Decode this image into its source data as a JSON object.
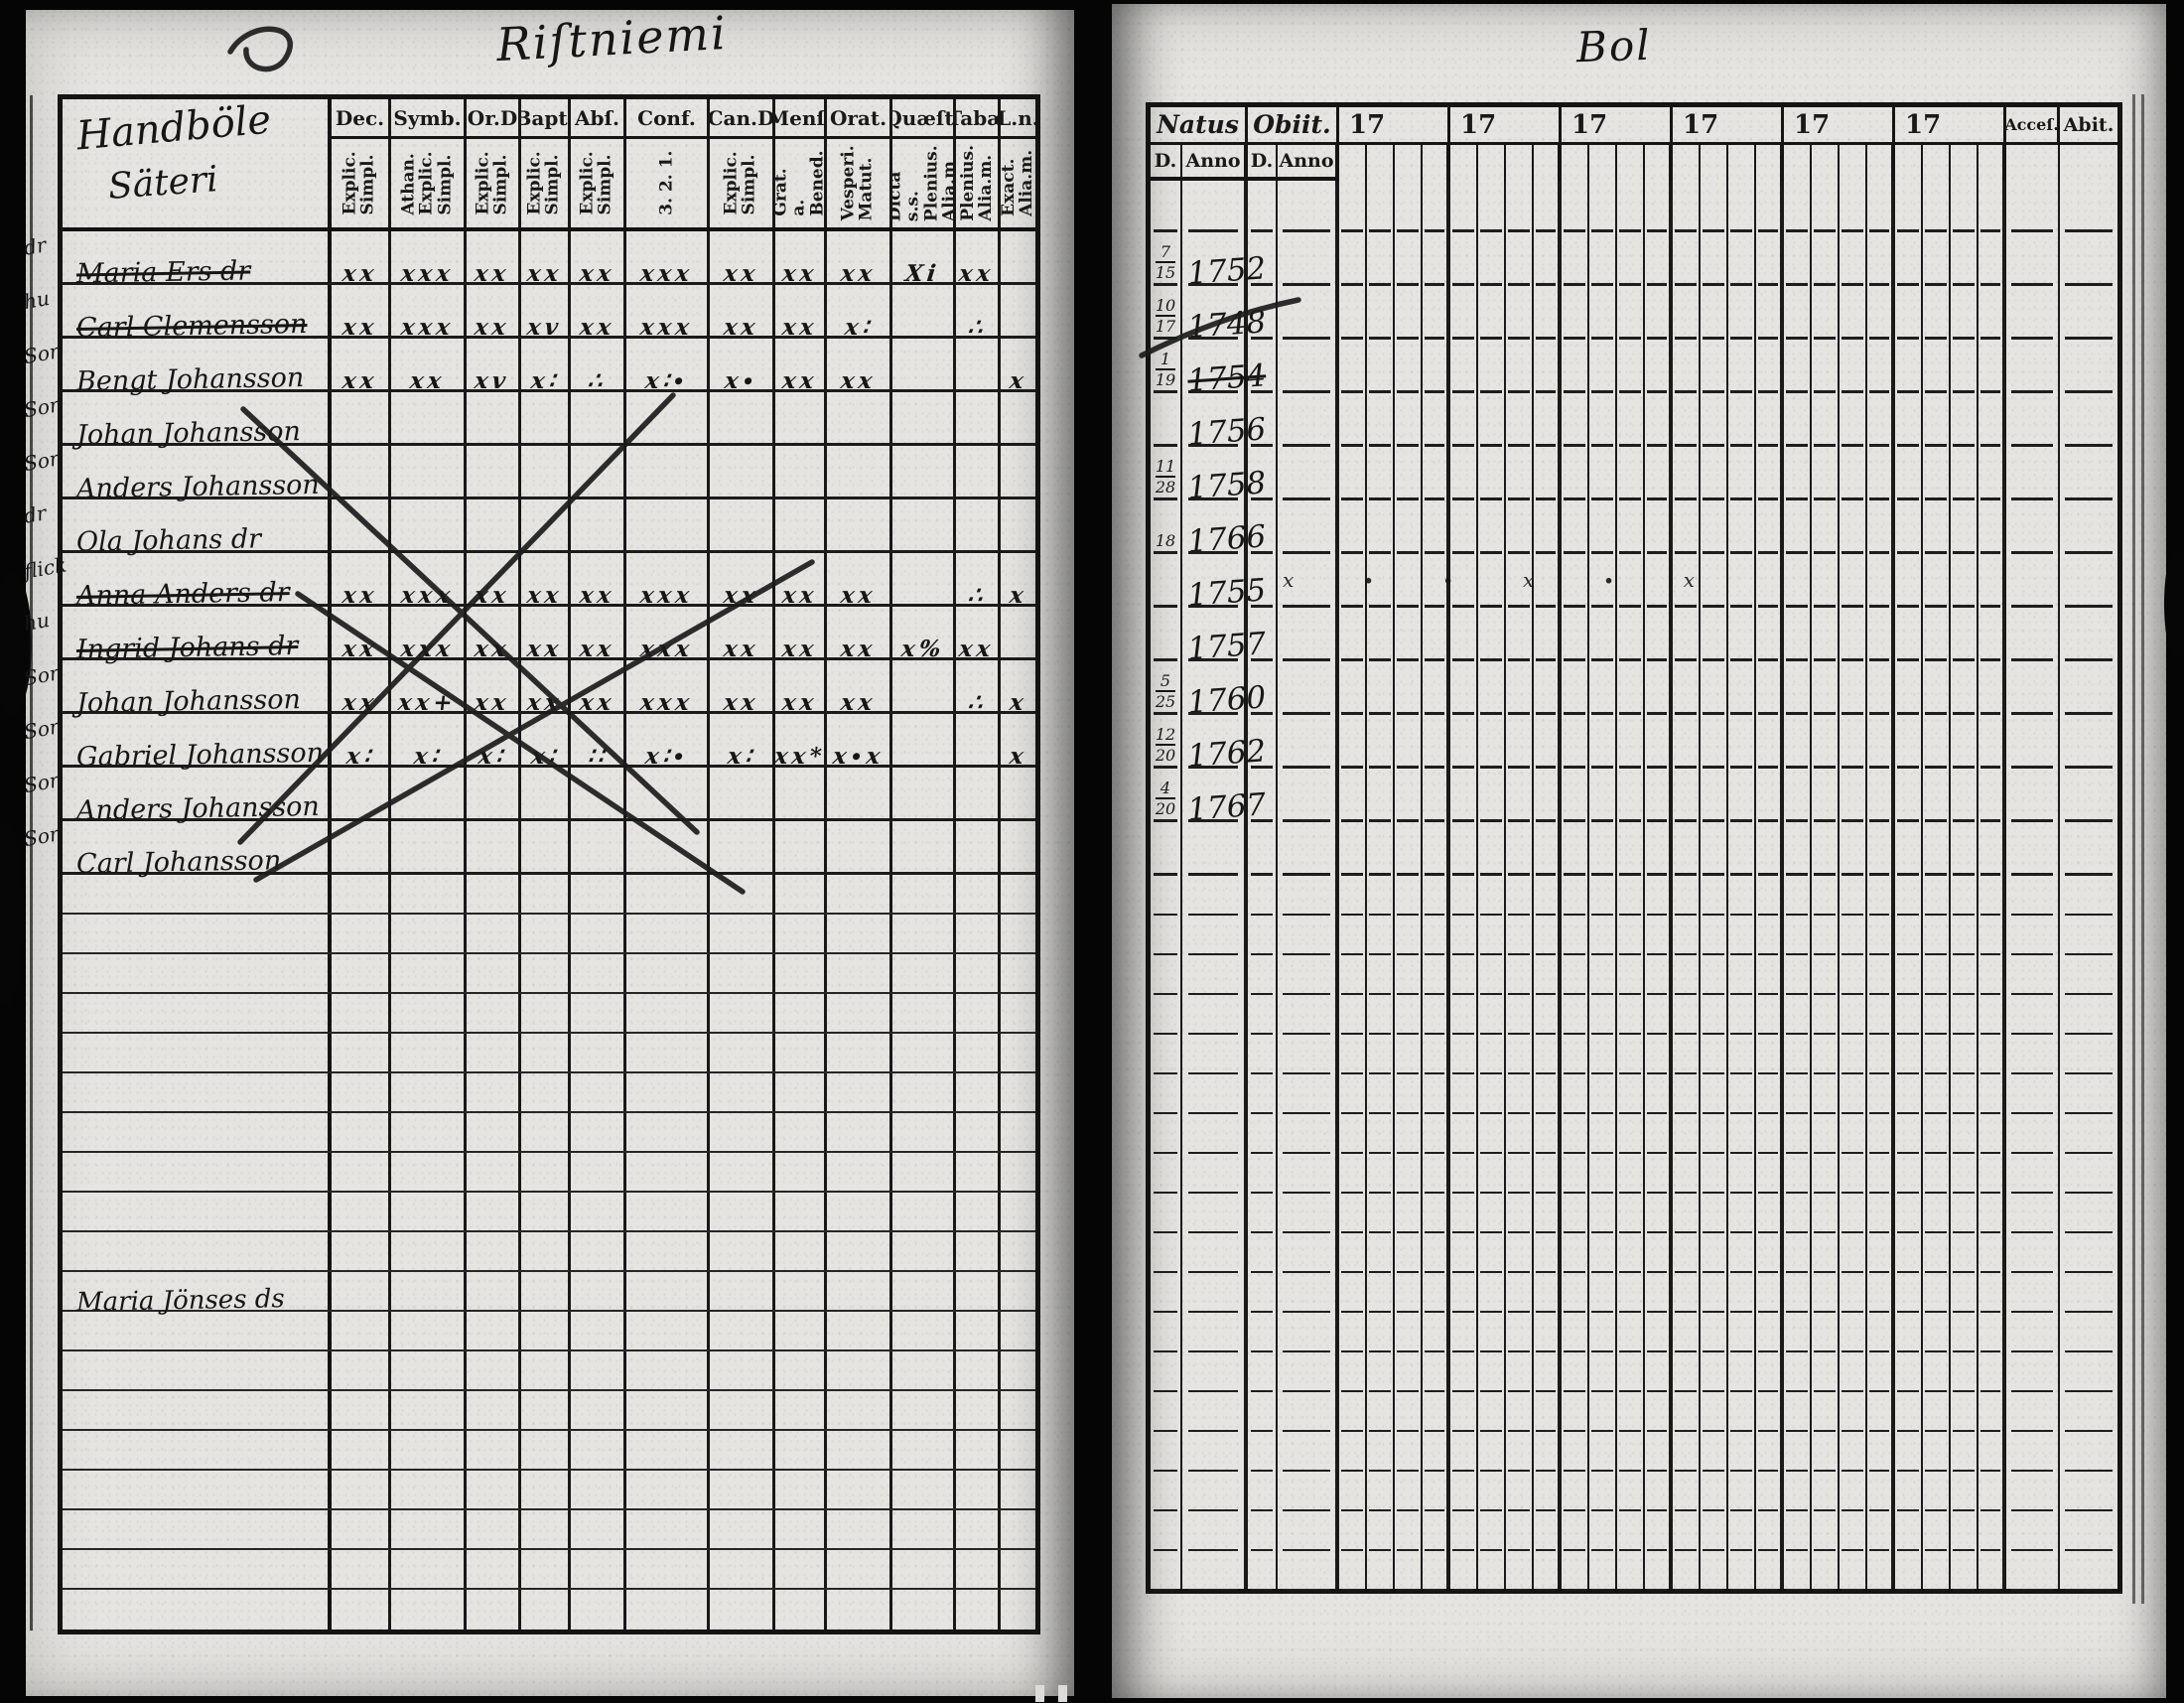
{
  "left_page": {
    "title_handwritten": "Riſtniemi",
    "name_column_header": [
      "Handböle",
      "Säteri"
    ],
    "columns": [
      {
        "label": "Dec.",
        "sub": [
          "Explic.",
          "Simpl."
        ]
      },
      {
        "label": "Symb.",
        "sub": [
          "Athan.",
          "Explic.",
          "Simpl."
        ]
      },
      {
        "label": "Or.D",
        "sub": [
          "Explic.",
          "Simpl."
        ]
      },
      {
        "label": "Bapt.",
        "sub": [
          "Explic.",
          "Simpl."
        ]
      },
      {
        "label": "Abſ.",
        "sub": [
          "Explic.",
          "Simpl."
        ]
      },
      {
        "label": "Conf.",
        "sub": [
          "3. 2. 1."
        ]
      },
      {
        "label": "Can.D",
        "sub": [
          "Explic.",
          "Simpl."
        ]
      },
      {
        "label": "Menſ.",
        "sub": [
          "Grät. a.",
          "Bened."
        ]
      },
      {
        "label": "Orat.",
        "sub": [
          "Vesperi.",
          "Matut."
        ]
      },
      {
        "label": "Quæſt.",
        "sub": [
          "Dicta s.s.",
          "Plenius.",
          "Alia.m"
        ]
      },
      {
        "label": "Tabæ",
        "sub": [
          "Plenius.",
          "Alia.m."
        ]
      },
      {
        "label": "L.n.",
        "sub": [
          "Exact.",
          "Alia.m."
        ]
      }
    ],
    "rows": [
      {
        "margin": "dr",
        "name": "Maria Ers dr",
        "struck": true,
        "marks": [
          "xx",
          "xxx",
          "xx",
          "xx",
          "xx",
          "xxx",
          "xx",
          "xx",
          "xx",
          "Xi",
          "xx",
          ""
        ]
      },
      {
        "margin": "hu",
        "name": "Carl Clemensson",
        "struck": true,
        "marks": [
          "xx",
          "xxx",
          "xx",
          "xv",
          "xx",
          "xxx",
          "xx",
          "xx",
          "x∶",
          "",
          "∴",
          ""
        ]
      },
      {
        "margin": "Son",
        "name": "Bengt Johansson",
        "struck": false,
        "marks": [
          "xx",
          "xx",
          "xv",
          "x∶",
          "∴",
          "x∶∙",
          "x∙",
          "xx",
          "xx",
          "",
          "",
          "x"
        ]
      },
      {
        "margin": "Son",
        "name": "Johan Johansson",
        "struck": false,
        "marks": [
          "",
          "",
          "",
          "",
          "",
          "",
          "",
          "",
          "",
          "",
          "",
          ""
        ]
      },
      {
        "margin": "Son",
        "name": "Anders Johansson",
        "struck": false,
        "marks": [
          "",
          "",
          "",
          "",
          "",
          "",
          "",
          "",
          "",
          "",
          "",
          ""
        ]
      },
      {
        "margin": "dr",
        "name": "Ola Johans dr",
        "struck": false,
        "marks": [
          "",
          "",
          "",
          "",
          "",
          "",
          "",
          "",
          "",
          "",
          "",
          ""
        ]
      },
      {
        "margin": "flick",
        "name": "Anna Anders dr",
        "struck": true,
        "marks": [
          "xx",
          "xxx",
          "xx",
          "xx",
          "xx",
          "xxx",
          "xx",
          "xx",
          "xx",
          "",
          "∴",
          "x"
        ]
      },
      {
        "margin": "hu",
        "name": "Ingrid Johans dr",
        "struck": true,
        "marks": [
          "xx",
          "xxx",
          "xx",
          "xx",
          "xx",
          "xxx",
          "xx",
          "xx",
          "xx",
          "x%",
          "xx",
          ""
        ]
      },
      {
        "margin": "Son",
        "name": "Johan Johansson",
        "struck": false,
        "marks": [
          "xx",
          "xx+",
          "xx",
          "xx",
          "xx",
          "xxx",
          "xx",
          "xx",
          "xx",
          "",
          "∴",
          "x"
        ]
      },
      {
        "margin": "Son",
        "name": "Gabriel Johansson",
        "struck": false,
        "marks": [
          "x∶",
          "x∶",
          "x∶",
          "x∶",
          "∶∶",
          "x∶∙",
          "x∶",
          "xx*",
          "x∙x",
          "",
          "",
          "x"
        ]
      },
      {
        "margin": "Son",
        "name": "Anders Johansson",
        "struck": false,
        "marks": [
          "",
          "",
          "",
          "",
          "",
          "",
          "",
          "",
          "",
          "",
          "",
          ""
        ]
      },
      {
        "margin": "Son",
        "name": "Carl Johansson",
        "struck": false,
        "marks": [
          "",
          "",
          "",
          "",
          "",
          "",
          "",
          "",
          "",
          "",
          "",
          ""
        ]
      }
    ],
    "empty_row_count": 19,
    "lower_entry": {
      "name": "Maria Jönses ds",
      "empty_row_index": 10
    }
  },
  "right_page": {
    "title_handwritten": "Bol",
    "header": {
      "natus": "Natus",
      "obiit": "Obiit.",
      "d": "D.",
      "anno": "Anno",
      "acces": "Acceſ.",
      "abit": "Abit."
    },
    "year_headers": [
      "17",
      "17",
      "17",
      "17",
      "17",
      "17"
    ],
    "rows": [
      {
        "d_top": "7",
        "d_bot": "15",
        "anno": "1752"
      },
      {
        "d_top": "10",
        "d_bot": "17",
        "anno": "1748"
      },
      {
        "d_top": "1",
        "d_bot": "19",
        "anno": "1754",
        "struck": true
      },
      {
        "d_top": "",
        "d_bot": "",
        "anno": "1756"
      },
      {
        "d_top": "11",
        "d_bot": "28",
        "anno": "1758"
      },
      {
        "d_top": "18",
        "d_bot": "",
        "anno": "1766"
      },
      {
        "d_top": "",
        "d_bot": "",
        "anno": "1755",
        "scatter": true
      },
      {
        "d_top": "",
        "d_bot": "",
        "anno": "1757"
      },
      {
        "d_top": "5",
        "d_bot": "25",
        "anno": "1760"
      },
      {
        "d_top": "12",
        "d_bot": "20",
        "anno": "1762"
      },
      {
        "d_top": "4",
        "d_bot": "20",
        "anno": "1767"
      },
      {
        "d_top": "",
        "d_bot": "",
        "anno": ""
      }
    ],
    "scatter_marks": "x ∙ ∙ x ∙ x",
    "empty_row_count": 18
  },
  "colors": {
    "paper": "#e5e4e0",
    "ink": "#191919",
    "background": "#050505"
  }
}
